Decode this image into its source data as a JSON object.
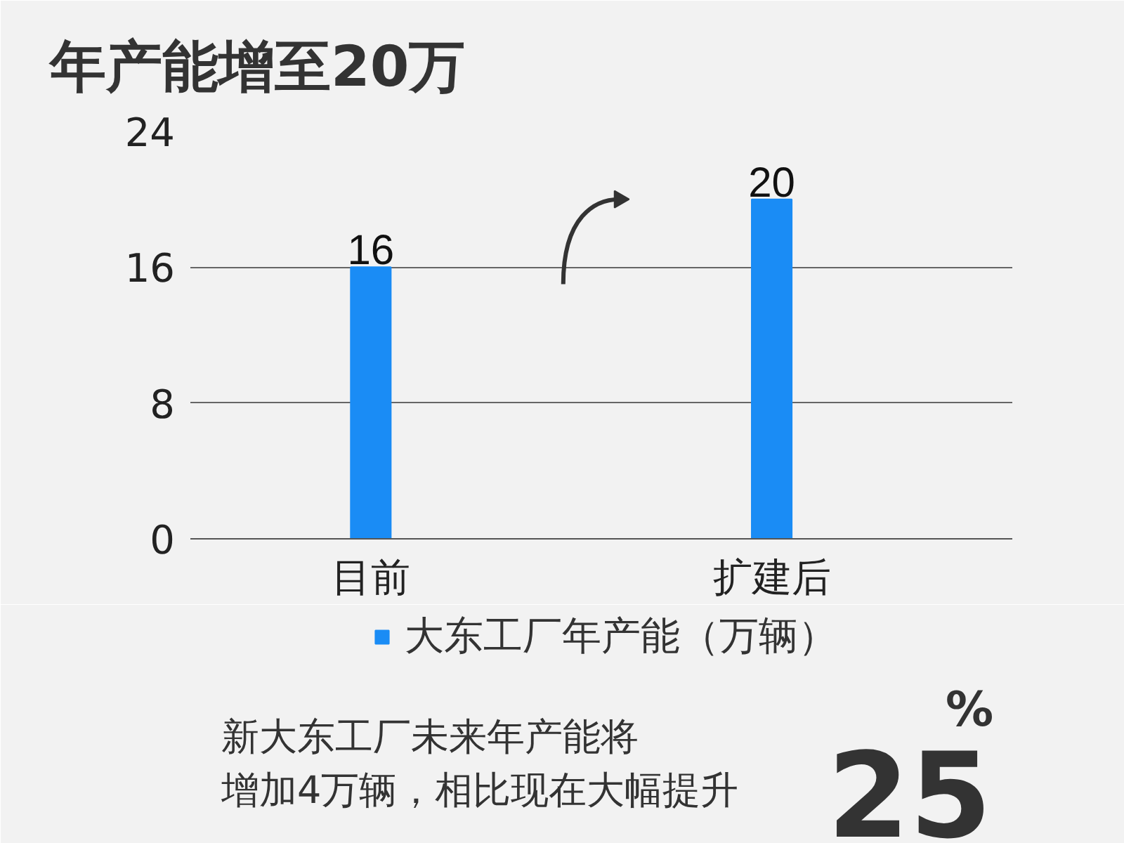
{
  "chart_data": {
    "type": "bar",
    "title": "年产能增至20万",
    "categories": [
      "目前",
      "扩建后"
    ],
    "series": [
      {
        "name": "大东工厂年产能（万辆）",
        "color": "#1a8cf5",
        "values": [
          16,
          20
        ]
      }
    ],
    "ylim": [
      0,
      24
    ],
    "yticks": [
      0,
      8,
      16,
      24
    ],
    "grid": "y",
    "legend": "bottom",
    "data_labels": true,
    "annotations": [
      "新大东工厂未来年产能将",
      "增加4万辆，相比现在大幅提升",
      "25$^{%}$"
    ]
  }
}
